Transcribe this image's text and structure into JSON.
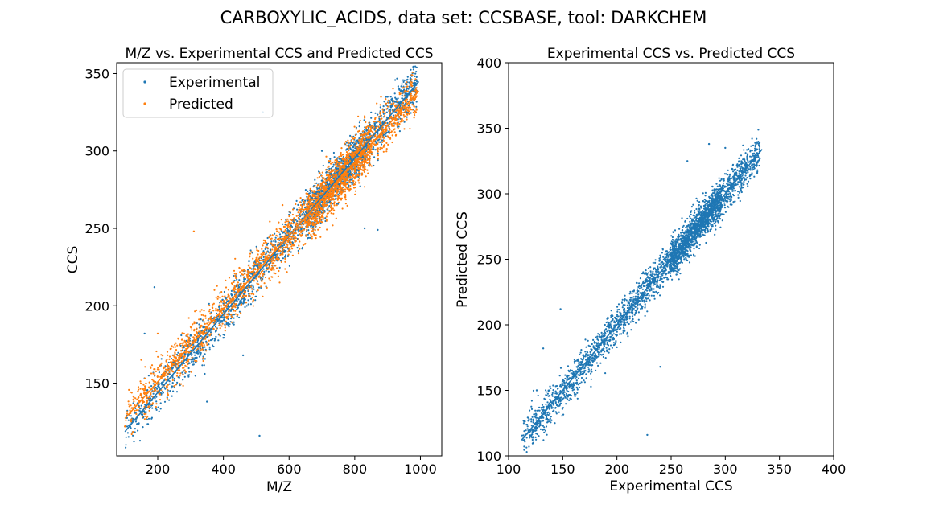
{
  "figure": {
    "suptitle": "CARBOXYLIC_ACIDS, data set: CCSBASE, tool: DARKCHEM"
  },
  "chart_data": [
    {
      "type": "scatter",
      "title": "M/Z vs. Experimental CCS and Predicted CCS",
      "xlabel": "M/Z",
      "ylabel": "CCS",
      "xlim": [
        75,
        1065
      ],
      "ylim": [
        103,
        357
      ],
      "xticks": [
        "200",
        "400",
        "600",
        "800",
        "1000"
      ],
      "yticks": [
        "150",
        "200",
        "250",
        "300",
        "350"
      ],
      "grid": false,
      "legend": {
        "position": "top-left",
        "entries": [
          "Experimental",
          "Predicted"
        ]
      },
      "series": [
        {
          "name": "Experimental",
          "color": "#1f77b4",
          "marker": "point",
          "trend": {
            "slope": 0.2527,
            "intercept": 93.4,
            "x_range": [
              100,
              995
            ]
          },
          "cloud": {
            "x_range": [
              100,
              990
            ],
            "n": 2600,
            "noise_sd": 7,
            "seed": 7
          },
          "points": [
            [
              190,
              212
            ],
            [
              160,
              182
            ],
            [
              350,
              138
            ],
            [
              460,
              168
            ],
            [
              510,
              116
            ],
            [
              520,
              325
            ],
            [
              700,
              300
            ],
            [
              830,
              250
            ],
            [
              870,
              249
            ],
            [
              900,
              335
            ],
            [
              960,
              335
            ]
          ]
        },
        {
          "name": "Predicted",
          "color": "#ff7f0e",
          "marker": "point",
          "trend": {
            "slope": 0.2364,
            "intercept": 103.5,
            "x_range": [
              100,
              995
            ]
          },
          "cloud": {
            "x_range": [
              100,
              990
            ],
            "n": 2600,
            "noise_sd": 8,
            "seed": 19
          },
          "points": [
            [
              100,
              122
            ],
            [
              150,
              165
            ],
            [
              200,
              182
            ],
            [
              280,
              182
            ],
            [
              310,
              248
            ],
            [
              580,
              265
            ],
            [
              880,
              335
            ],
            [
              950,
              322
            ]
          ]
        }
      ]
    },
    {
      "type": "scatter",
      "title": "Experimental CCS vs. Predicted CCS",
      "xlabel": "Experimental CCS",
      "ylabel": "Predicted CCS",
      "xlim": [
        100,
        400
      ],
      "ylim": [
        100,
        400
      ],
      "xticks": [
        "100",
        "150",
        "200",
        "250",
        "300",
        "350",
        "400"
      ],
      "yticks": [
        "100",
        "150",
        "200",
        "250",
        "300",
        "350",
        "400"
      ],
      "grid": false,
      "series": [
        {
          "color": "#1f77b4",
          "marker": "point",
          "trend": {
            "slope": 1.0,
            "intercept": 0,
            "x_range": [
              112,
              334
            ]
          },
          "cloud": {
            "x_range": [
              112,
              332
            ],
            "n": 3200,
            "noise_sd": 7,
            "seed": 31
          },
          "points": [
            [
              126,
              150
            ],
            [
              132,
              182
            ],
            [
              148,
              212
            ],
            [
              165,
              170
            ],
            [
              228,
              116
            ],
            [
              240,
              168
            ],
            [
              265,
              325
            ],
            [
              285,
              338
            ],
            [
              300,
              335
            ],
            [
              320,
              318
            ]
          ]
        }
      ]
    }
  ]
}
